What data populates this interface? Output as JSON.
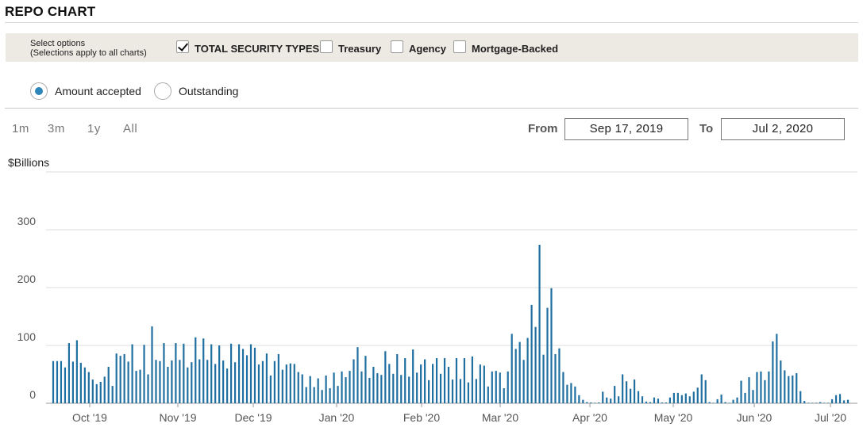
{
  "header": {
    "title": "REPO CHART"
  },
  "options": {
    "label_line1": "Select options",
    "label_line2": "(Selections apply to all charts)",
    "security_types": [
      {
        "label": "TOTAL SECURITY TYPES",
        "checked": true
      },
      {
        "label": "Treasury",
        "checked": false
      },
      {
        "label": "Agency",
        "checked": false
      },
      {
        "label": "Mortgage-Backed",
        "checked": false
      }
    ],
    "view_modes": [
      {
        "label": "Amount accepted",
        "selected": true
      },
      {
        "label": "Outstanding",
        "selected": false
      }
    ]
  },
  "zoom": {
    "buttons": [
      "1m",
      "3m",
      "1y",
      "All"
    ]
  },
  "range": {
    "from_label": "From",
    "from_value": "Sep 17, 2019",
    "to_label": "To",
    "to_value": "Jul 2, 2020"
  },
  "accent_color": "#1f6fa0",
  "chart_data": {
    "type": "bar",
    "ylabel": "$Billions",
    "ylim": [
      0,
      400
    ],
    "y_ticks": [
      0,
      100,
      200,
      300
    ],
    "grid": true,
    "x_tick_labels": [
      "Oct '19",
      "Nov '19",
      "Dec '19",
      "Jan '20",
      "Feb '20",
      "Mar '20",
      "Apr '20",
      "May '20",
      "Jun '20",
      "Jul '20"
    ],
    "series": [
      {
        "color": "#1f6fa0",
        "values": [
          73,
          73,
          73,
          62,
          104,
          72,
          109,
          70,
          62,
          54,
          41,
          33,
          37,
          46,
          63,
          30,
          86,
          82,
          85,
          72,
          102,
          56,
          58,
          101,
          50,
          133,
          75,
          73,
          104,
          63,
          74,
          104,
          75,
          103,
          62,
          71,
          114,
          76,
          112,
          75,
          102,
          68,
          100,
          74,
          60,
          103,
          71,
          102,
          94,
          83,
          102,
          96,
          67,
          73,
          86,
          48,
          73,
          85,
          58,
          67,
          69,
          68,
          54,
          50,
          28,
          47,
          28,
          43,
          23,
          48,
          26,
          53,
          30,
          55,
          45,
          56,
          76,
          97,
          55,
          82,
          44,
          63,
          52,
          49,
          90,
          68,
          51,
          85,
          49,
          78,
          46,
          93,
          53,
          67,
          76,
          40,
          68,
          78,
          51,
          78,
          63,
          41,
          78,
          42,
          78,
          36,
          81,
          42,
          67,
          65,
          29,
          55,
          56,
          53,
          26,
          55,
          120,
          94,
          106,
          75,
          113,
          170,
          132,
          274,
          84,
          165,
          199,
          85,
          95,
          54,
          32,
          35,
          29,
          14,
          6,
          2,
          1,
          0,
          1,
          20,
          10,
          8,
          30,
          12,
          50,
          38,
          25,
          41,
          21,
          12,
          3,
          2,
          10,
          8,
          1,
          1,
          10,
          18,
          18,
          14,
          17,
          12,
          20,
          27,
          50,
          40,
          2,
          0,
          7,
          15,
          2,
          0,
          6,
          10,
          39,
          18,
          45,
          23,
          54,
          55,
          40,
          55,
          107,
          120,
          74,
          57,
          47,
          48,
          52,
          21,
          4,
          0,
          0,
          0,
          2,
          0,
          0,
          7,
          14,
          16,
          5,
          6
        ]
      }
    ]
  }
}
